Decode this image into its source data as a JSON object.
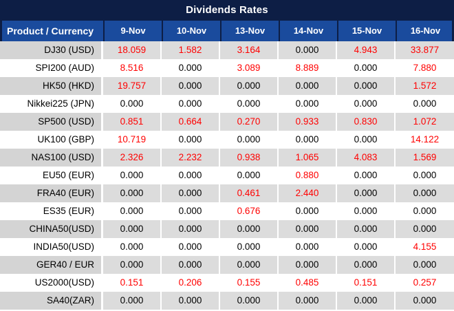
{
  "title": "Dividends Rates",
  "table": {
    "product_header": "Product / Currency",
    "date_headers": [
      "9-Nov",
      "10-Nov",
      "13-Nov",
      "14-Nov",
      "15-Nov",
      "16-Nov"
    ],
    "rows": [
      {
        "product": "DJ30 (USD)",
        "values": [
          "18.059",
          "1.582",
          "3.164",
          "0.000",
          "4.943",
          "33.877"
        ]
      },
      {
        "product": "SPI200 (AUD)",
        "values": [
          "8.516",
          "0.000",
          "3.089",
          "8.889",
          "0.000",
          "7.880"
        ]
      },
      {
        "product": "HK50 (HKD)",
        "values": [
          "19.757",
          "0.000",
          "0.000",
          "0.000",
          "0.000",
          "1.572"
        ]
      },
      {
        "product": "Nikkei225 (JPN)",
        "values": [
          "0.000",
          "0.000",
          "0.000",
          "0.000",
          "0.000",
          "0.000"
        ]
      },
      {
        "product": "SP500 (USD)",
        "values": [
          "0.851",
          "0.664",
          "0.270",
          "0.933",
          "0.830",
          "1.072"
        ]
      },
      {
        "product": "UK100 (GBP)",
        "values": [
          "10.719",
          "0.000",
          "0.000",
          "0.000",
          "0.000",
          "14.122"
        ]
      },
      {
        "product": "NAS100 (USD)",
        "values": [
          "2.326",
          "2.232",
          "0.938",
          "1.065",
          "4.083",
          "1.569"
        ]
      },
      {
        "product": "EU50 (EUR)",
        "values": [
          "0.000",
          "0.000",
          "0.000",
          "0.880",
          "0.000",
          "0.000"
        ]
      },
      {
        "product": "FRA40 (EUR)",
        "values": [
          "0.000",
          "0.000",
          "0.461",
          "2.440",
          "0.000",
          "0.000"
        ]
      },
      {
        "product": "ES35 (EUR)",
        "values": [
          "0.000",
          "0.000",
          "0.676",
          "0.000",
          "0.000",
          "0.000"
        ]
      },
      {
        "product": "CHINA50(USD)",
        "values": [
          "0.000",
          "0.000",
          "0.000",
          "0.000",
          "0.000",
          "0.000"
        ]
      },
      {
        "product": "INDIA50(USD)",
        "values": [
          "0.000",
          "0.000",
          "0.000",
          "0.000",
          "0.000",
          "4.155"
        ]
      },
      {
        "product": "GER40 / EUR",
        "values": [
          "0.000",
          "0.000",
          "0.000",
          "0.000",
          "0.000",
          "0.000"
        ]
      },
      {
        "product": "US2000(USD)",
        "values": [
          "0.151",
          "0.206",
          "0.155",
          "0.485",
          "0.151",
          "0.257"
        ]
      },
      {
        "product": "SA40(ZAR)",
        "values": [
          "0.000",
          "0.000",
          "0.000",
          "0.000",
          "0.000",
          "0.000"
        ]
      }
    ]
  },
  "colors": {
    "title_bar": "#0d1e45",
    "header_row": "#1a4b9d",
    "row_grey": "#dcdcdc",
    "product_grey": "#d4d4d4",
    "row_white": "#ffffff",
    "value_nonzero": "#ff0000",
    "value_zero": "#000000"
  }
}
